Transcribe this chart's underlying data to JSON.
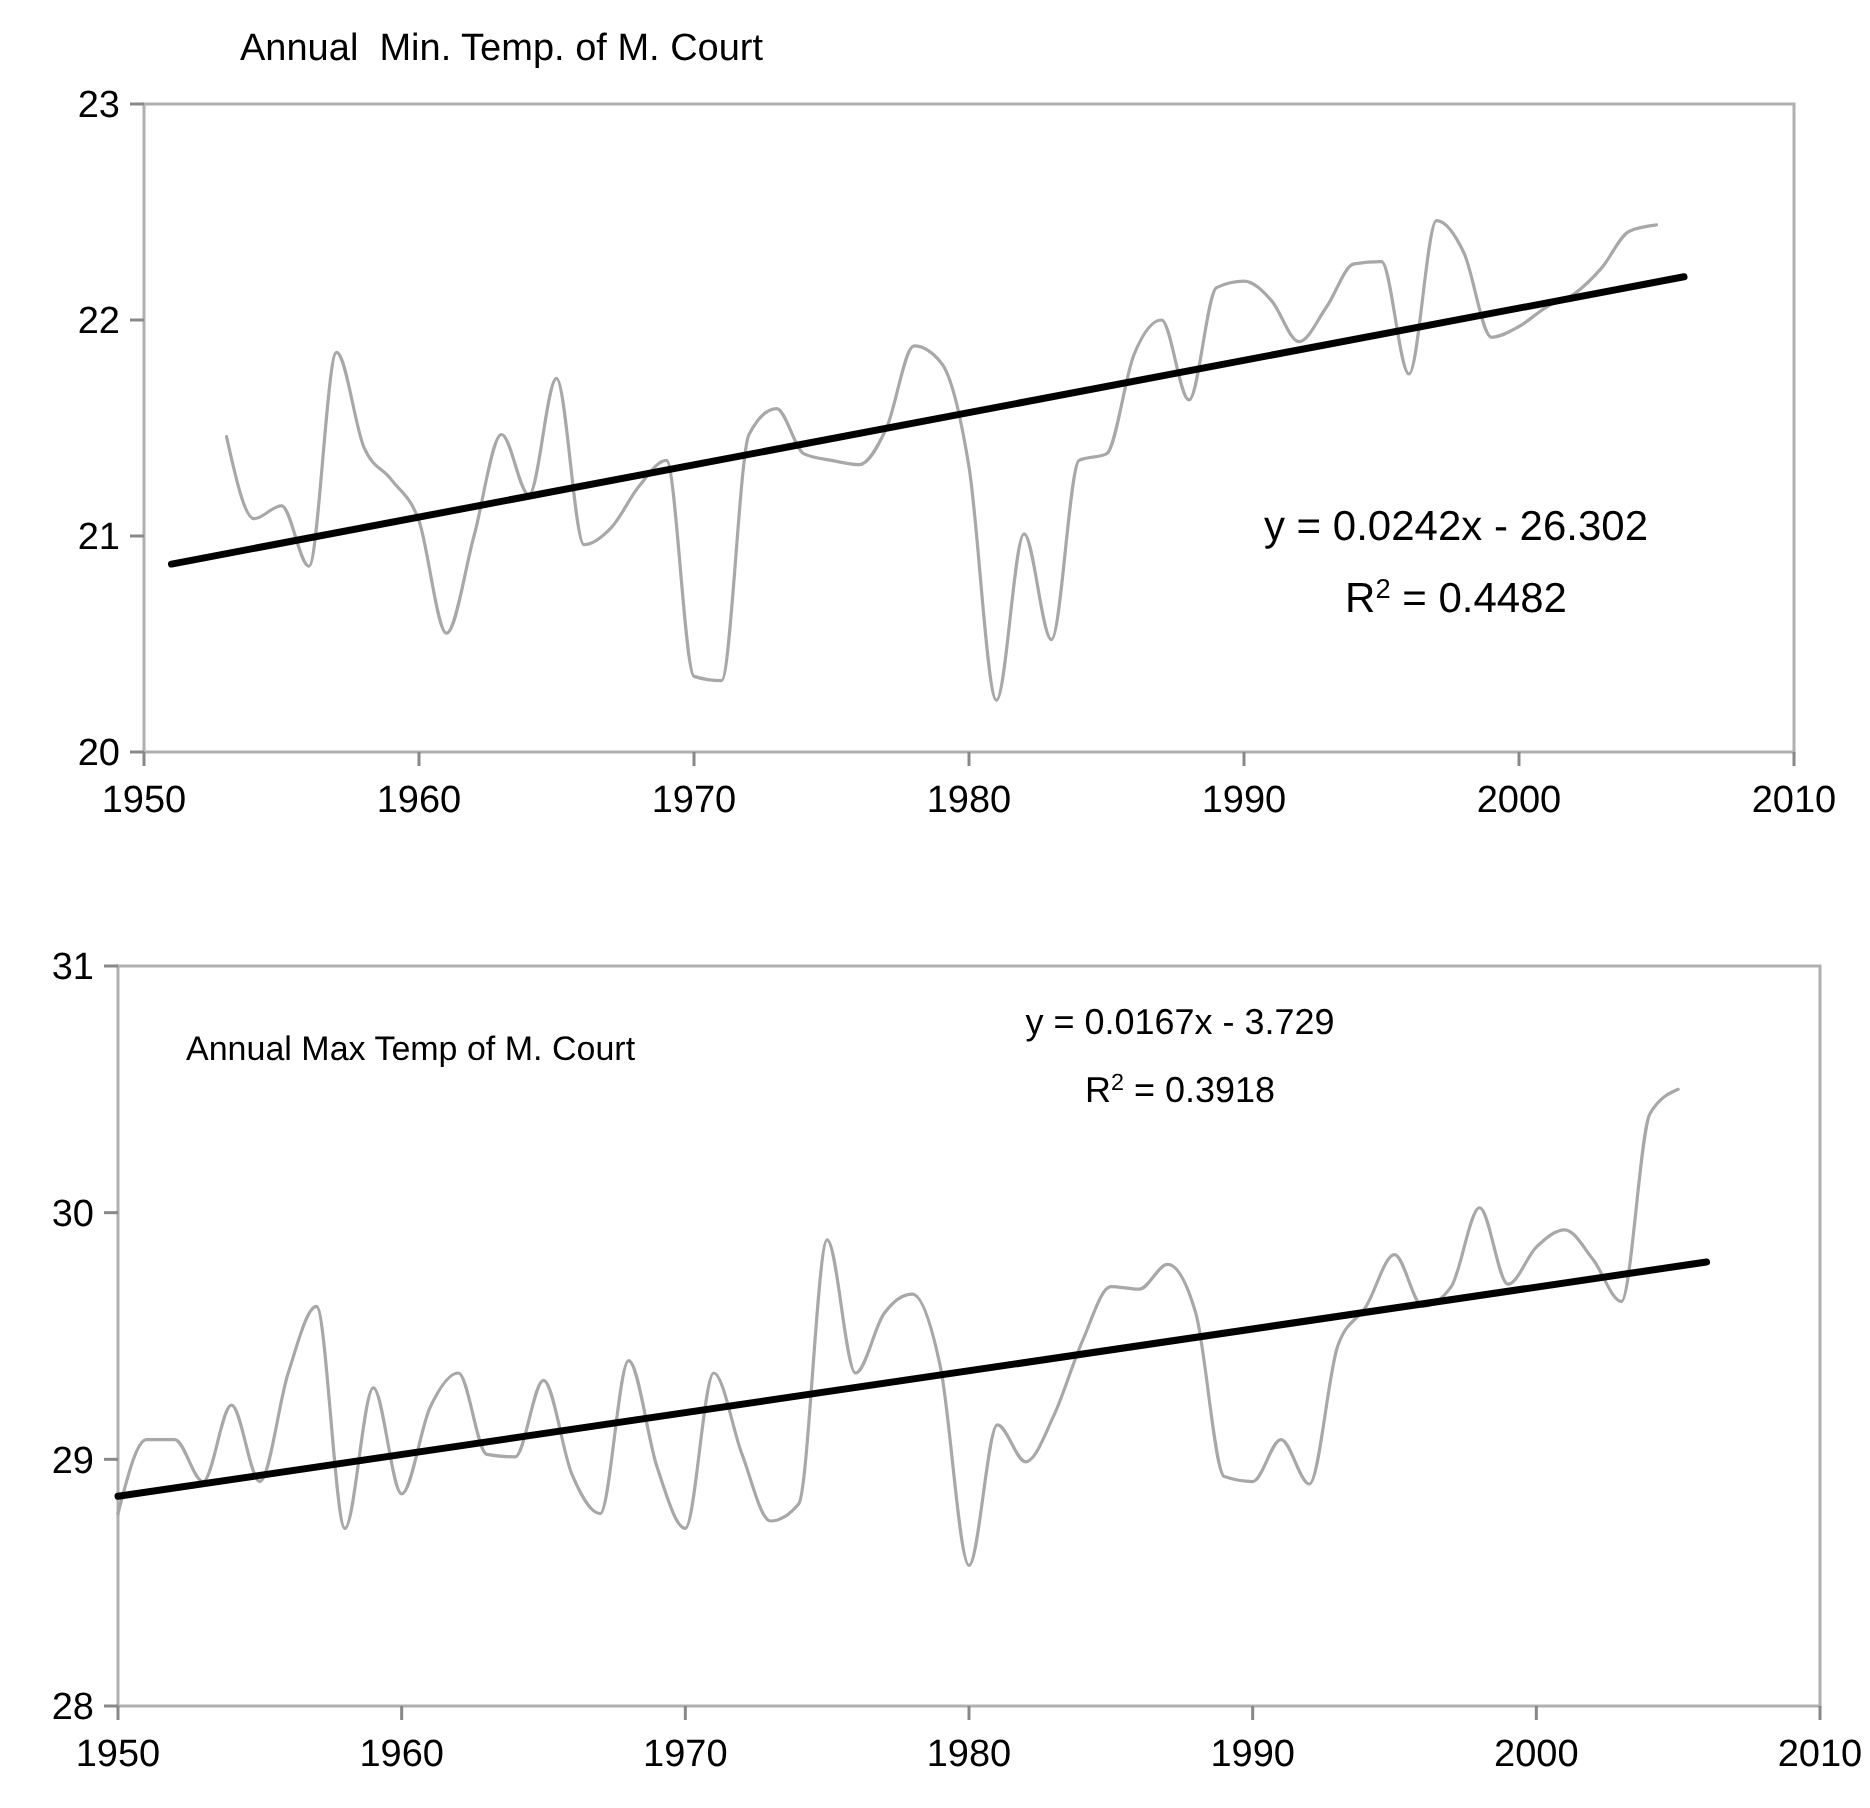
{
  "chart_data": [
    {
      "type": "line",
      "title": "Annual  Min. Temp. of M. Court",
      "xlim": [
        1950,
        2010
      ],
      "xticks": [
        1950,
        1960,
        1970,
        1980,
        1990,
        2000,
        2010
      ],
      "ylim": [
        20,
        23
      ],
      "yticks": [
        20,
        21,
        22,
        23
      ],
      "grid": false,
      "marker": "none",
      "line_style": "solid",
      "annotations": [
        "y = 0.0242x - 26.302",
        "R$^{2}$ = 0.4482"
      ],
      "series": [
        {
          "color": "#a8a8a8",
          "x": [
            1953,
            1954,
            1955,
            1956,
            1957,
            1958,
            1959,
            1960,
            1961,
            1962,
            1963,
            1964,
            1965,
            1966,
            1967,
            1968,
            1969,
            1970,
            1971,
            1972,
            1973,
            1974,
            1975,
            1976,
            1977,
            1978,
            1979,
            1980,
            1981,
            1982,
            1983,
            1984,
            1985,
            1986,
            1987,
            1988,
            1989,
            1990,
            1991,
            1992,
            1993,
            1994,
            1995,
            1996,
            1997,
            1998,
            1999,
            2000,
            2001,
            2002,
            2003,
            2004,
            2005
          ],
          "values": [
            21.46,
            21.08,
            21.14,
            20.86,
            21.85,
            21.41,
            21.26,
            21.07,
            20.55,
            21.0,
            21.47,
            21.19,
            21.73,
            20.96,
            21.04,
            21.23,
            21.35,
            20.35,
            20.33,
            21.47,
            21.59,
            21.38,
            21.35,
            21.33,
            21.5,
            21.88,
            21.8,
            21.32,
            20.24,
            21.01,
            20.52,
            21.35,
            21.38,
            21.84,
            22.0,
            21.63,
            22.15,
            22.18,
            22.09,
            21.9,
            22.06,
            22.26,
            22.27,
            21.75,
            22.46,
            22.31,
            21.92,
            21.97,
            22.06,
            22.12,
            22.24,
            22.41,
            22.44
          ]
        },
        {
          "type": "line",
          "color": "#000000",
          "x": [
            1951,
            2006
          ],
          "values": [
            20.87,
            22.2
          ]
        }
      ]
    },
    {
      "type": "line",
      "title": "Annual Max Temp of M. Court",
      "xlim": [
        1950,
        2010
      ],
      "xticks": [
        1950,
        1960,
        1970,
        1980,
        1990,
        2000,
        2010
      ],
      "ylim": [
        28,
        31
      ],
      "yticks": [
        28,
        29,
        30,
        31
      ],
      "grid": false,
      "marker": "none",
      "line_style": "solid",
      "annotations": [
        "y = 0.0167x - 3.729",
        "R$^{2}$ = 0.3918"
      ],
      "series": [
        {
          "color": "#a8a8a8",
          "x": [
            1950,
            1951,
            1952,
            1953,
            1954,
            1955,
            1956,
            1957,
            1958,
            1959,
            1960,
            1961,
            1962,
            1963,
            1964,
            1965,
            1966,
            1967,
            1968,
            1969,
            1970,
            1971,
            1972,
            1973,
            1974,
            1975,
            1976,
            1977,
            1978,
            1979,
            1980,
            1981,
            1982,
            1983,
            1984,
            1985,
            1986,
            1987,
            1988,
            1989,
            1990,
            1991,
            1992,
            1993,
            1994,
            1995,
            1996,
            1997,
            1998,
            1999,
            2000,
            2001,
            2002,
            2003,
            2004,
            2005
          ],
          "values": [
            28.78,
            29.08,
            29.08,
            28.91,
            29.22,
            28.91,
            29.35,
            29.62,
            28.72,
            29.29,
            28.86,
            29.21,
            29.35,
            29.02,
            29.01,
            29.32,
            28.94,
            28.78,
            29.4,
            28.97,
            28.72,
            29.35,
            29.02,
            28.75,
            28.82,
            29.89,
            29.35,
            29.59,
            29.67,
            29.37,
            28.57,
            29.14,
            28.99,
            29.18,
            29.48,
            29.7,
            29.69,
            29.79,
            29.59,
            28.93,
            28.91,
            29.08,
            28.9,
            29.46,
            29.62,
            29.83,
            29.62,
            29.7,
            30.02,
            29.71,
            29.86,
            29.93,
            29.81,
            29.64,
            30.4,
            30.5
          ]
        },
        {
          "type": "line",
          "color": "#000000",
          "x": [
            1950,
            2006
          ],
          "values": [
            28.85,
            29.8
          ]
        }
      ]
    }
  ]
}
